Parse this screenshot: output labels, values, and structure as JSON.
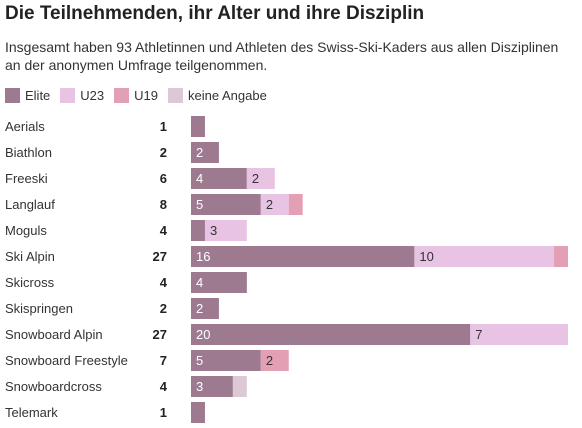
{
  "title": "Die Teilnehmenden, ihr Alter und ihre Disziplin",
  "subtitle": "Insgesamt haben 93 Athletinnen und Athleten des Swiss-Ski-Kaders aus allen Disziplinen an der anonymen Umfrage teilgenommen.",
  "legend": [
    {
      "label": "Elite",
      "color": "#9e7a91"
    },
    {
      "label": "U23",
      "color": "#e8c3e4"
    },
    {
      "label": "U19",
      "color": "#e3a0b4"
    },
    {
      "label": "keine Angabe",
      "color": "#ddc8d6"
    }
  ],
  "chart_data": {
    "type": "bar",
    "orientation": "horizontal",
    "stacked": true,
    "categories": [
      "Aerials",
      "Biathlon",
      "Freeski",
      "Langlauf",
      "Moguls",
      "Ski Alpin",
      "Skicross",
      "Skispringen",
      "Snowboard Alpin",
      "Snowboard Freestyle",
      "Snowboardcross",
      "Telemark"
    ],
    "totals": [
      1,
      2,
      6,
      8,
      4,
      27,
      4,
      2,
      27,
      7,
      4,
      1
    ],
    "series": [
      {
        "name": "Elite",
        "color": "#9e7a91",
        "values": [
          1,
          2,
          4,
          5,
          1,
          16,
          4,
          2,
          20,
          5,
          3,
          1
        ]
      },
      {
        "name": "U23",
        "color": "#e8c3e4",
        "values": [
          0,
          0,
          2,
          2,
          3,
          10,
          0,
          0,
          7,
          0,
          0,
          0
        ]
      },
      {
        "name": "U19",
        "color": "#e3a0b4",
        "values": [
          0,
          0,
          0,
          1,
          0,
          1,
          0,
          0,
          0,
          2,
          0,
          0
        ]
      },
      {
        "name": "keine Angabe",
        "color": "#ddc8d6",
        "values": [
          0,
          0,
          0,
          0,
          0,
          0,
          0,
          0,
          0,
          0,
          1,
          0
        ]
      }
    ],
    "xlim": [
      0,
      27
    ],
    "legend_position": "top-left",
    "grid": false
  }
}
